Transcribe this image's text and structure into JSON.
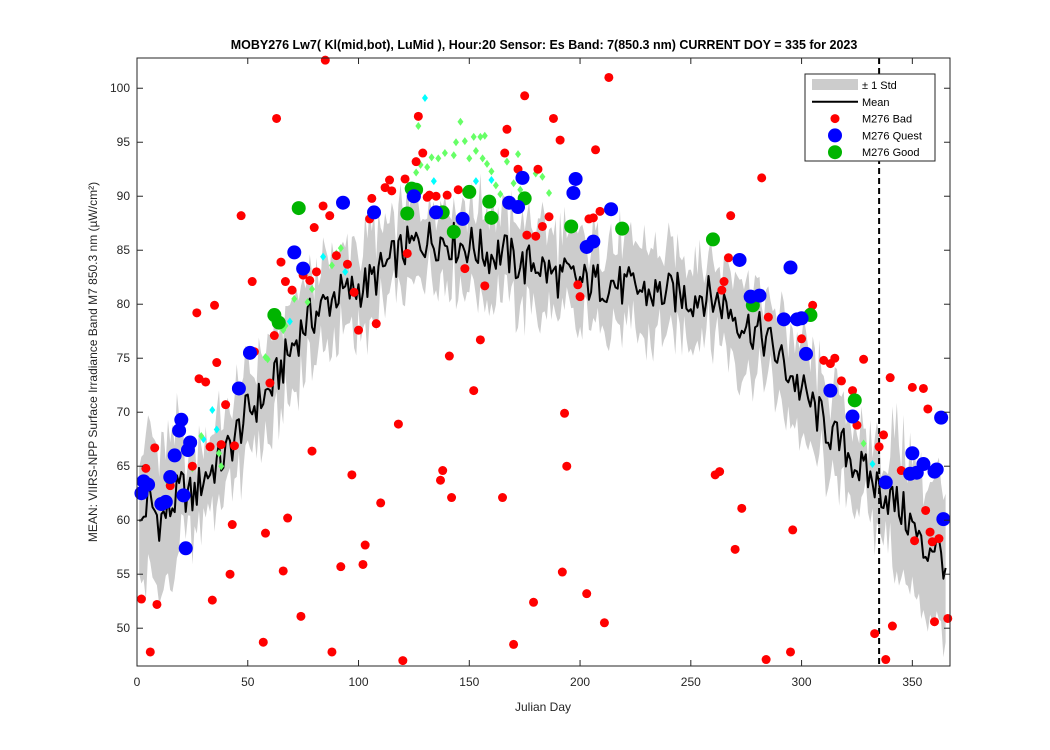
{
  "chart_data": {
    "type": "scatter",
    "title": "MOBY276   Lw7( Kl(mid,bot), LuMid ),   Hour:20 Sensor: Es Band: 7(850.3 nm)   CURRENT DOY = 335 for 2023",
    "xlabel": "Julian Day",
    "ylabel": "MEAN: VIIRS-NPP Surface Irradiance Band M7 850.3 nm (µW/cm²)",
    "xlim": [
      0,
      367
    ],
    "ylim": [
      46.5,
      102.8
    ],
    "xticks": [
      0,
      50,
      100,
      150,
      200,
      250,
      300,
      350
    ],
    "yticks": [
      50,
      55,
      60,
      65,
      70,
      75,
      80,
      85,
      90,
      95,
      100
    ],
    "current_doy": 335,
    "grid": false,
    "legend_position": "top-right",
    "colors": {
      "std_band": "#cccccc",
      "mean_line": "#000000",
      "bad": "#ff0000",
      "quest": "#0000ff",
      "good": "#00b400",
      "good_light": "#66ff66",
      "quest_light": "#00ffff"
    },
    "legend": [
      {
        "label": "± 1 Std",
        "kind": "band"
      },
      {
        "label": "Mean",
        "kind": "line"
      },
      {
        "label": "M276 Bad",
        "kind": "bad"
      },
      {
        "label": "M276 Quest",
        "kind": "quest"
      },
      {
        "label": "M276 Good",
        "kind": "good"
      }
    ],
    "mean_anchors": [
      [
        1,
        59
      ],
      [
        5,
        62
      ],
      [
        10,
        60
      ],
      [
        15,
        61
      ],
      [
        20,
        63
      ],
      [
        25,
        62
      ],
      [
        30,
        64
      ],
      [
        35,
        65
      ],
      [
        40,
        66
      ],
      [
        45,
        68
      ],
      [
        50,
        70
      ],
      [
        55,
        71
      ],
      [
        60,
        72
      ],
      [
        65,
        74
      ],
      [
        70,
        76
      ],
      [
        75,
        78
      ],
      [
        80,
        79
      ],
      [
        85,
        80
      ],
      [
        90,
        81
      ],
      [
        95,
        81
      ],
      [
        100,
        81.5
      ],
      [
        105,
        82
      ],
      [
        110,
        83
      ],
      [
        115,
        84
      ],
      [
        120,
        85
      ],
      [
        125,
        85.5
      ],
      [
        130,
        86
      ],
      [
        135,
        86
      ],
      [
        140,
        86
      ],
      [
        145,
        85.5
      ],
      [
        150,
        85.5
      ],
      [
        155,
        85
      ],
      [
        160,
        84.5
      ],
      [
        165,
        85
      ],
      [
        170,
        84
      ],
      [
        175,
        83.5
      ],
      [
        180,
        84
      ],
      [
        185,
        83
      ],
      [
        190,
        82.5
      ],
      [
        195,
        82.5
      ],
      [
        200,
        82
      ],
      [
        205,
        82
      ],
      [
        210,
        82
      ],
      [
        215,
        82
      ],
      [
        220,
        81.5
      ],
      [
        225,
        81.5
      ],
      [
        230,
        81
      ],
      [
        235,
        81
      ],
      [
        240,
        81
      ],
      [
        245,
        81
      ],
      [
        250,
        80.5
      ],
      [
        255,
        81
      ],
      [
        260,
        80.5
      ],
      [
        265,
        80
      ],
      [
        270,
        79
      ],
      [
        275,
        78
      ],
      [
        280,
        77.5
      ],
      [
        285,
        76.5
      ],
      [
        290,
        75
      ],
      [
        295,
        73.5
      ],
      [
        300,
        72
      ],
      [
        305,
        70.5
      ],
      [
        310,
        69
      ],
      [
        315,
        67.5
      ],
      [
        320,
        66.5
      ],
      [
        325,
        65
      ],
      [
        330,
        64
      ],
      [
        335,
        63
      ],
      [
        340,
        62
      ],
      [
        345,
        61
      ],
      [
        350,
        59.5
      ],
      [
        355,
        57
      ],
      [
        360,
        58
      ],
      [
        365,
        56
      ]
    ],
    "bad_points": [
      [
        2,
        52.7
      ],
      [
        4,
        64.8
      ],
      [
        6,
        47.8
      ],
      [
        8,
        66.7
      ],
      [
        9,
        52.2
      ],
      [
        15,
        63.2
      ],
      [
        25,
        65
      ],
      [
        27,
        79.2
      ],
      [
        28,
        73.1
      ],
      [
        31,
        72.8
      ],
      [
        33,
        66.8
      ],
      [
        34,
        52.6
      ],
      [
        35,
        79.9
      ],
      [
        36,
        74.6
      ],
      [
        38,
        67
      ],
      [
        40,
        70.7
      ],
      [
        42,
        55
      ],
      [
        43,
        59.6
      ],
      [
        44,
        66.9
      ],
      [
        47,
        88.2
      ],
      [
        52,
        82.1
      ],
      [
        53,
        75.6
      ],
      [
        57,
        48.7
      ],
      [
        58,
        58.8
      ],
      [
        60,
        72.7
      ],
      [
        62,
        77.1
      ],
      [
        63,
        97.2
      ],
      [
        65,
        83.9
      ],
      [
        66,
        55.3
      ],
      [
        67,
        82.1
      ],
      [
        68,
        60.2
      ],
      [
        70,
        81.3
      ],
      [
        74,
        51.1
      ],
      [
        75,
        82.7
      ],
      [
        78,
        82.2
      ],
      [
        79,
        66.4
      ],
      [
        80,
        87.1
      ],
      [
        81,
        83
      ],
      [
        84,
        89.1
      ],
      [
        85,
        102.6
      ],
      [
        87,
        88.2
      ],
      [
        88,
        47.8
      ],
      [
        90,
        84.5
      ],
      [
        92,
        55.7
      ],
      [
        95,
        83.7
      ],
      [
        97,
        64.2
      ],
      [
        98,
        81.1
      ],
      [
        100,
        77.6
      ],
      [
        102,
        55.9
      ],
      [
        103,
        57.7
      ],
      [
        105,
        87.9
      ],
      [
        106,
        89.8
      ],
      [
        108,
        78.2
      ],
      [
        110,
        61.6
      ],
      [
        112,
        90.8
      ],
      [
        114,
        91.5
      ],
      [
        115,
        90.5
      ],
      [
        118,
        68.9
      ],
      [
        120,
        47
      ],
      [
        121,
        91.6
      ],
      [
        122,
        84.7
      ],
      [
        124,
        90.4
      ],
      [
        126,
        93.2
      ],
      [
        127,
        97.4
      ],
      [
        129,
        94
      ],
      [
        131,
        89.9
      ],
      [
        132,
        90.1
      ],
      [
        135,
        90
      ],
      [
        137,
        63.7
      ],
      [
        138,
        64.6
      ],
      [
        140,
        90.1
      ],
      [
        141,
        75.2
      ],
      [
        142,
        62.1
      ],
      [
        145,
        90.6
      ],
      [
        148,
        83.3
      ],
      [
        152,
        72
      ],
      [
        155,
        76.7
      ],
      [
        157,
        81.7
      ],
      [
        165,
        62.1
      ],
      [
        166,
        94
      ],
      [
        167,
        96.2
      ],
      [
        170,
        48.5
      ],
      [
        172,
        92.5
      ],
      [
        175,
        99.3
      ],
      [
        176,
        86.4
      ],
      [
        179,
        52.4
      ],
      [
        180,
        86.3
      ],
      [
        181,
        92.5
      ],
      [
        183,
        87.2
      ],
      [
        186,
        88.1
      ],
      [
        188,
        97.2
      ],
      [
        191,
        95.2
      ],
      [
        192,
        55.2
      ],
      [
        193,
        69.9
      ],
      [
        194,
        65
      ],
      [
        199,
        81.8
      ],
      [
        200,
        80.7
      ],
      [
        203,
        53.2
      ],
      [
        204,
        87.9
      ],
      [
        206,
        88
      ],
      [
        207,
        94.3
      ],
      [
        209,
        88.6
      ],
      [
        211,
        50.5
      ],
      [
        213,
        101
      ],
      [
        261,
        64.2
      ],
      [
        263,
        64.5
      ],
      [
        264,
        81.3
      ],
      [
        265,
        82.1
      ],
      [
        267,
        84.3
      ],
      [
        268,
        88.2
      ],
      [
        270,
        57.3
      ],
      [
        271,
        84.1
      ],
      [
        273,
        61.1
      ],
      [
        282,
        91.7
      ],
      [
        284,
        47.1
      ],
      [
        285,
        78.8
      ],
      [
        295,
        47.8
      ],
      [
        296,
        59.1
      ],
      [
        300,
        76.8
      ],
      [
        304,
        79.3
      ],
      [
        305,
        79.9
      ],
      [
        310,
        74.8
      ],
      [
        313,
        74.5
      ],
      [
        315,
        75
      ],
      [
        318,
        72.9
      ],
      [
        323,
        72
      ],
      [
        325,
        68.8
      ],
      [
        328,
        74.9
      ],
      [
        333,
        49.5
      ],
      [
        335,
        66.8
      ],
      [
        337,
        67.9
      ],
      [
        338,
        47.1
      ],
      [
        340,
        73.2
      ],
      [
        341,
        50.2
      ],
      [
        345,
        64.6
      ],
      [
        350,
        72.3
      ],
      [
        351,
        58.1
      ],
      [
        355,
        72.2
      ],
      [
        356,
        60.9
      ],
      [
        357,
        70.3
      ],
      [
        358,
        58.9
      ],
      [
        359,
        58
      ],
      [
        360,
        50.6
      ],
      [
        362,
        58.3
      ],
      [
        366,
        50.9
      ]
    ],
    "quest_points": [
      [
        2,
        62.5
      ],
      [
        3,
        63.6
      ],
      [
        5,
        63.3
      ],
      [
        11,
        61.5
      ],
      [
        13,
        61.7
      ],
      [
        15,
        64
      ],
      [
        17,
        66
      ],
      [
        19,
        68.3
      ],
      [
        20,
        69.3
      ],
      [
        21,
        62.3
      ],
      [
        22,
        57.4
      ],
      [
        23,
        66.5
      ],
      [
        24,
        67.2
      ],
      [
        46,
        72.2
      ],
      [
        51,
        75.5
      ],
      [
        71,
        84.8
      ],
      [
        75,
        83.3
      ],
      [
        93,
        89.4
      ],
      [
        107,
        88.5
      ],
      [
        125,
        90
      ],
      [
        135,
        88.5
      ],
      [
        147,
        87.9
      ],
      [
        168,
        89.4
      ],
      [
        172,
        89
      ],
      [
        174,
        91.7
      ],
      [
        197,
        90.3
      ],
      [
        198,
        91.6
      ],
      [
        203,
        85.3
      ],
      [
        206,
        85.8
      ],
      [
        214,
        88.8
      ],
      [
        272,
        84.1
      ],
      [
        277,
        80.7
      ],
      [
        281,
        80.8
      ],
      [
        292,
        78.6
      ],
      [
        295,
        83.4
      ],
      [
        298,
        78.6
      ],
      [
        300,
        78.7
      ],
      [
        302,
        75.4
      ],
      [
        313,
        72
      ],
      [
        323,
        69.6
      ],
      [
        338,
        63.5
      ],
      [
        349,
        64.3
      ],
      [
        350,
        66.2
      ],
      [
        352,
        64.4
      ],
      [
        355,
        65.2
      ],
      [
        360,
        64.5
      ],
      [
        361,
        64.7
      ],
      [
        363,
        69.5
      ],
      [
        364,
        60.1
      ]
    ],
    "good_points": [
      [
        62,
        79
      ],
      [
        64,
        78.3
      ],
      [
        73,
        88.9
      ],
      [
        122,
        88.4
      ],
      [
        124,
        90.7
      ],
      [
        126,
        90.6
      ],
      [
        138,
        88.5
      ],
      [
        143,
        86.7
      ],
      [
        150,
        90.4
      ],
      [
        159,
        89.5
      ],
      [
        160,
        88
      ],
      [
        175,
        89.8
      ],
      [
        196,
        87.2
      ],
      [
        219,
        87
      ],
      [
        260,
        86
      ],
      [
        278,
        79.9
      ],
      [
        304,
        79
      ],
      [
        324,
        71.1
      ]
    ],
    "good_light_points": [
      [
        14,
        63.5
      ],
      [
        25,
        64.8
      ],
      [
        29,
        67.8
      ],
      [
        37,
        66.2
      ],
      [
        38,
        65
      ],
      [
        58,
        75.1
      ],
      [
        59,
        74.9
      ],
      [
        61,
        78.6
      ],
      [
        66,
        77.6
      ],
      [
        67,
        78
      ],
      [
        71,
        80.5
      ],
      [
        77,
        80.2
      ],
      [
        79,
        81.4
      ],
      [
        88,
        83.6
      ],
      [
        90,
        84.7
      ],
      [
        92,
        85.2
      ],
      [
        124,
        89.7
      ],
      [
        126,
        92.2
      ],
      [
        127,
        96.5
      ],
      [
        128,
        92.9
      ],
      [
        131,
        92.7
      ],
      [
        133,
        93.6
      ],
      [
        136,
        93.5
      ],
      [
        139,
        94
      ],
      [
        143,
        93.8
      ],
      [
        144,
        95
      ],
      [
        146,
        96.9
      ],
      [
        148,
        95.1
      ],
      [
        150,
        93.5
      ],
      [
        152,
        95.5
      ],
      [
        153,
        94.2
      ],
      [
        155,
        95.5
      ],
      [
        156,
        93.5
      ],
      [
        157,
        95.6
      ],
      [
        158,
        93
      ],
      [
        160,
        92.3
      ],
      [
        162,
        91
      ],
      [
        164,
        90.2
      ],
      [
        167,
        93.2
      ],
      [
        170,
        91.2
      ],
      [
        172,
        93.9
      ],
      [
        173,
        90.6
      ],
      [
        176,
        91.7
      ],
      [
        180,
        92.1
      ],
      [
        183,
        91.8
      ],
      [
        186,
        90.3
      ],
      [
        328,
        67.1
      ]
    ],
    "quest_light_points": [
      [
        30,
        67.5
      ],
      [
        34,
        70.2
      ],
      [
        36,
        68.4
      ],
      [
        69,
        78.4
      ],
      [
        84,
        84.4
      ],
      [
        94,
        83
      ],
      [
        130,
        99.1
      ],
      [
        134,
        91.4
      ],
      [
        153,
        91.4
      ],
      [
        160,
        91.5
      ],
      [
        332,
        65.2
      ]
    ]
  }
}
